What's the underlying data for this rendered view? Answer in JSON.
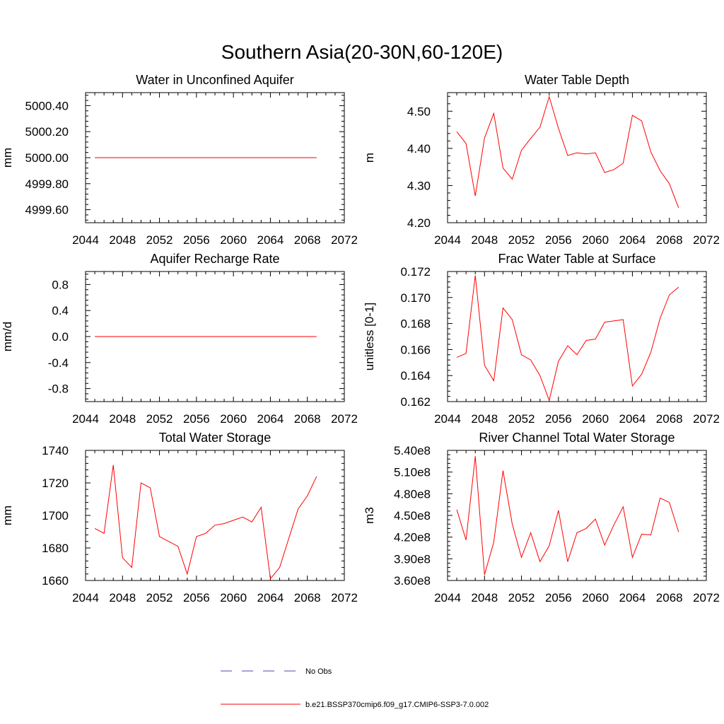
{
  "figure": {
    "title": "Southern Asia(20-30N,60-120E)"
  },
  "legend": {
    "entries": [
      {
        "label": "No Obs",
        "color": "#4a4ab4",
        "style": "dashed"
      },
      {
        "label": "b.e21.BSSP370cmip6.f09_g17.CMIP6-SSP3-7.0.002",
        "color": "#ff0000",
        "style": "solid"
      }
    ]
  },
  "chart_data": [
    {
      "type": "line",
      "title": "Water in Unconfined Aquifer",
      "ylabel": "mm",
      "xlim": [
        2044,
        2072
      ],
      "xticks": [
        "2044",
        "2048",
        "2052",
        "2056",
        "2060",
        "2064",
        "2068",
        "2072"
      ],
      "ylim": [
        4999.5,
        5000.5
      ],
      "yticks": [
        "4999.60",
        "4999.80",
        "5000.00",
        "5000.20",
        "5000.40"
      ],
      "series": [
        {
          "color": "#ff0000",
          "x": [
            2045,
            2046,
            2047,
            2048,
            2049,
            2050,
            2051,
            2052,
            2053,
            2054,
            2055,
            2056,
            2057,
            2058,
            2059,
            2060,
            2061,
            2062,
            2063,
            2064,
            2065,
            2066,
            2067,
            2068,
            2069
          ],
          "values": [
            5000,
            5000,
            5000,
            5000,
            5000,
            5000,
            5000,
            5000,
            5000,
            5000,
            5000,
            5000,
            5000,
            5000,
            5000,
            5000,
            5000,
            5000,
            5000,
            5000,
            5000,
            5000,
            5000,
            5000,
            5000
          ]
        }
      ]
    },
    {
      "type": "line",
      "title": "Water Table Depth",
      "ylabel": "m",
      "xlim": [
        2044,
        2072
      ],
      "xticks": [
        "2044",
        "2048",
        "2052",
        "2056",
        "2060",
        "2064",
        "2068",
        "2072"
      ],
      "ylim": [
        4.2,
        4.55
      ],
      "yticks": [
        "4.20",
        "4.30",
        "4.40",
        "4.50"
      ],
      "series": [
        {
          "color": "#ff0000",
          "x": [
            2045,
            2046,
            2047,
            2048,
            2049,
            2050,
            2051,
            2052,
            2053,
            2054,
            2055,
            2056,
            2057,
            2058,
            2059,
            2060,
            2061,
            2062,
            2063,
            2064,
            2065,
            2066,
            2067,
            2068,
            2069
          ],
          "values": [
            4.445,
            4.413,
            4.272,
            4.428,
            4.494,
            4.347,
            4.317,
            4.395,
            4.427,
            4.457,
            4.539,
            4.454,
            4.381,
            4.388,
            4.385,
            4.388,
            4.335,
            4.343,
            4.36,
            4.489,
            4.474,
            4.39,
            4.34,
            4.305,
            4.24
          ]
        }
      ]
    },
    {
      "type": "line",
      "title": "Aquifer Recharge Rate",
      "ylabel": "mm/d",
      "xlim": [
        2044,
        2072
      ],
      "xticks": [
        "2044",
        "2048",
        "2052",
        "2056",
        "2060",
        "2064",
        "2068",
        "2072"
      ],
      "ylim": [
        -1.0,
        1.0
      ],
      "yticks": [
        "-0.8",
        "-0.4",
        "0.0",
        "0.4",
        "0.8"
      ],
      "series": [
        {
          "color": "#ff0000",
          "x": [
            2045,
            2046,
            2047,
            2048,
            2049,
            2050,
            2051,
            2052,
            2053,
            2054,
            2055,
            2056,
            2057,
            2058,
            2059,
            2060,
            2061,
            2062,
            2063,
            2064,
            2065,
            2066,
            2067,
            2068,
            2069
          ],
          "values": [
            0,
            0,
            0,
            0,
            0,
            0,
            0,
            0,
            0,
            0,
            0,
            0,
            0,
            0,
            0,
            0,
            0,
            0,
            0,
            0,
            0,
            0,
            0,
            0,
            0
          ]
        }
      ]
    },
    {
      "type": "line",
      "title": "Frac Water Table at Surface",
      "ylabel": "unitless [0-1]",
      "xlim": [
        2044,
        2072
      ],
      "xticks": [
        "2044",
        "2048",
        "2052",
        "2056",
        "2060",
        "2064",
        "2068",
        "2072"
      ],
      "ylim": [
        0.162,
        0.172
      ],
      "yticks": [
        "0.162",
        "0.164",
        "0.166",
        "0.168",
        "0.170",
        "0.172"
      ],
      "series": [
        {
          "color": "#ff0000",
          "x": [
            2045,
            2046,
            2047,
            2048,
            2049,
            2050,
            2051,
            2052,
            2053,
            2054,
            2055,
            2056,
            2057,
            2058,
            2059,
            2060,
            2061,
            2062,
            2063,
            2064,
            2065,
            2066,
            2067,
            2068,
            2069
          ],
          "values": [
            0.1654,
            0.1657,
            0.1717,
            0.1648,
            0.1636,
            0.1692,
            0.1683,
            0.1656,
            0.1652,
            0.164,
            0.1621,
            0.1651,
            0.1663,
            0.1656,
            0.1667,
            0.1668,
            0.1681,
            0.1682,
            0.1683,
            0.1632,
            0.1641,
            0.1658,
            0.1684,
            0.1702,
            0.1708
          ]
        }
      ]
    },
    {
      "type": "line",
      "title": "Total Water Storage",
      "ylabel": "mm",
      "xlim": [
        2044,
        2072
      ],
      "xticks": [
        "2044",
        "2048",
        "2052",
        "2056",
        "2060",
        "2064",
        "2068",
        "2072"
      ],
      "ylim": [
        1660,
        1740
      ],
      "yticks": [
        "1660",
        "1680",
        "1700",
        "1720",
        "1740"
      ],
      "series": [
        {
          "color": "#ff0000",
          "x": [
            2045,
            2046,
            2047,
            2048,
            2049,
            2050,
            2051,
            2052,
            2053,
            2054,
            2055,
            2056,
            2057,
            2058,
            2059,
            2060,
            2061,
            2062,
            2063,
            2064,
            2065,
            2066,
            2067,
            2068,
            2069
          ],
          "values": [
            1692,
            1689,
            1731,
            1674,
            1668,
            1720,
            1717,
            1687,
            1684,
            1681,
            1664,
            1687,
            1689,
            1694,
            1695,
            1697,
            1699,
            1696,
            1705,
            1661,
            1668,
            1686,
            1704,
            1712,
            1724
          ]
        }
      ]
    },
    {
      "type": "line",
      "title": "River Channel Total Water Storage",
      "ylabel": "m3",
      "xlim": [
        2044,
        2072
      ],
      "xticks": [
        "2044",
        "2048",
        "2052",
        "2056",
        "2060",
        "2064",
        "2068",
        "2072"
      ],
      "ylim": [
        360000000,
        540000000
      ],
      "yticks": [
        "3.60e8",
        "3.90e8",
        "4.20e8",
        "4.50e8",
        "4.80e8",
        "5.10e8",
        "5.40e8"
      ],
      "series": [
        {
          "color": "#ff0000",
          "x": [
            2045,
            2046,
            2047,
            2048,
            2049,
            2050,
            2051,
            2052,
            2053,
            2054,
            2055,
            2056,
            2057,
            2058,
            2059,
            2060,
            2061,
            2062,
            2063,
            2064,
            2065,
            2066,
            2067,
            2068,
            2069
          ],
          "values": [
            458000000,
            416000000,
            532000000,
            368000000,
            413000000,
            512000000,
            438000000,
            392000000,
            426000000,
            386000000,
            408000000,
            457000000,
            386000000,
            426000000,
            432000000,
            445000000,
            409000000,
            437000000,
            462000000,
            392000000,
            424000000,
            423000000,
            474000000,
            468000000,
            427000000
          ]
        }
      ]
    }
  ]
}
